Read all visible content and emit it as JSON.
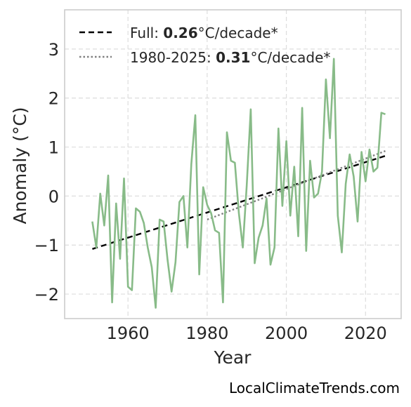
{
  "chart_data": {
    "type": "line",
    "xlabel": "Year",
    "ylabel": "Anomaly (°C)",
    "xlim": [
      1944,
      2029
    ],
    "ylim": [
      -2.5,
      3.8
    ],
    "xticks": [
      1960,
      1980,
      2000,
      2020
    ],
    "yticks": [
      -2,
      -1,
      0,
      1,
      2,
      3
    ],
    "xtick_labels": [
      "1960",
      "1980",
      "2000",
      "2020"
    ],
    "ytick_labels": [
      "−2",
      "−1",
      "0",
      "1",
      "2",
      "3"
    ],
    "grid": true,
    "legend_position": "top-left",
    "series": [
      {
        "kind": "anomaly",
        "color": "#88bb88",
        "x": [
          1951,
          1952,
          1953,
          1954,
          1955,
          1956,
          1957,
          1958,
          1959,
          1960,
          1961,
          1962,
          1963,
          1964,
          1965,
          1966,
          1967,
          1968,
          1969,
          1970,
          1971,
          1972,
          1973,
          1974,
          1975,
          1976,
          1977,
          1978,
          1979,
          1980,
          1981,
          1982,
          1983,
          1984,
          1985,
          1986,
          1987,
          1988,
          1989,
          1990,
          1991,
          1992,
          1993,
          1994,
          1995,
          1996,
          1997,
          1998,
          1999,
          2000,
          2001,
          2002,
          2003,
          2004,
          2005,
          2006,
          2007,
          2008,
          2009,
          2010,
          2011,
          2012,
          2013,
          2014,
          2015,
          2016,
          2017,
          2018,
          2019,
          2020,
          2021,
          2022,
          2023,
          2024,
          2025
        ],
        "y": [
          -0.52,
          -1.05,
          0.05,
          -0.6,
          0.42,
          -2.17,
          -0.15,
          -1.28,
          0.36,
          -1.85,
          -1.92,
          -0.25,
          -0.32,
          -0.55,
          -1.05,
          -1.45,
          -2.28,
          -0.48,
          -0.52,
          -1.3,
          -1.95,
          -1.35,
          -0.12,
          0.0,
          -1.05,
          0.65,
          1.65,
          -1.6,
          0.18,
          -0.18,
          -0.35,
          -0.7,
          -0.75,
          -2.17,
          1.3,
          0.72,
          0.68,
          -0.35,
          -1.05,
          0.22,
          1.77,
          -1.37,
          -0.85,
          -0.6,
          -0.05,
          -1.4,
          -1.05,
          1.38,
          -0.2,
          1.12,
          -0.4,
          0.6,
          -0.82,
          1.8,
          -1.12,
          0.72,
          -0.03,
          0.05,
          0.5,
          2.38,
          1.18,
          2.8,
          -0.4,
          -1.15,
          0.25,
          0.85,
          0.4,
          -0.52,
          0.9,
          0.3,
          0.95,
          0.5,
          0.58,
          1.7,
          1.67
        ]
      },
      {
        "kind": "trend-full",
        "color": "#000000",
        "x": [
          1951,
          2025
        ],
        "y": [
          -1.08,
          0.82
        ]
      },
      {
        "kind": "trend-recent",
        "color": "#808080",
        "x": [
          1980,
          2025
        ],
        "y": [
          -0.48,
          0.92
        ]
      }
    ],
    "legend": [
      {
        "prefix": "Full: ",
        "rate": "0.26",
        "suffix": "°C/decade*",
        "style": "dashed",
        "color": "#000000"
      },
      {
        "prefix": "1980-2025: ",
        "rate": "0.31",
        "suffix": "°C/decade*",
        "style": "dotted",
        "color": "#808080"
      }
    ]
  },
  "watermark": "LocalClimateTrends.com"
}
